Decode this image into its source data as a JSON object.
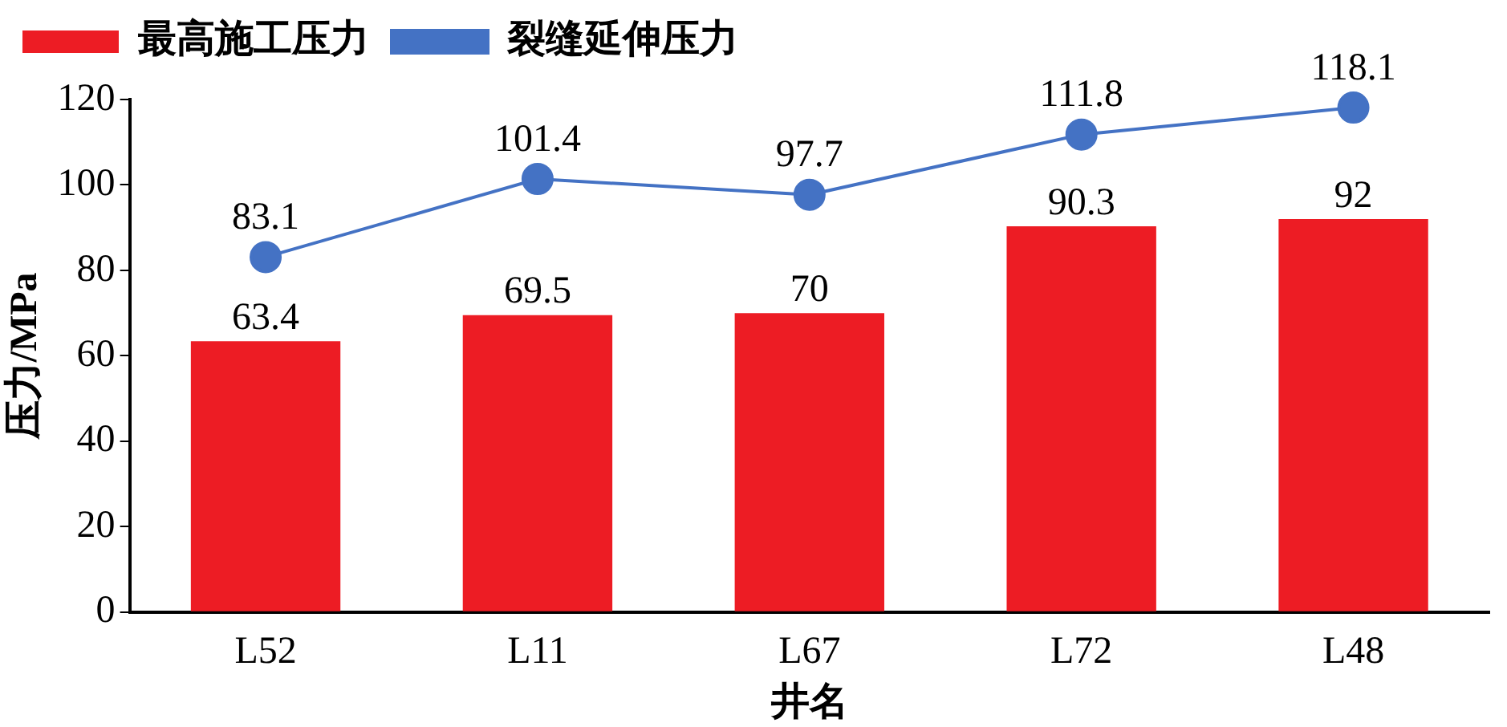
{
  "chart_data": {
    "type": "bar",
    "xlabel": "井名",
    "ylabel": "压力/MPa",
    "categories": [
      "L52",
      "L11",
      "L67",
      "L72",
      "L48"
    ],
    "series": [
      {
        "name": "最高施工压力",
        "color": "#ed1c24",
        "values": [
          63.4,
          69.5,
          70,
          90.3,
          92
        ]
      },
      {
        "name": "裂缝延伸压力",
        "type": "line",
        "color": "#4472c4",
        "values": [
          83.1,
          101.4,
          97.7,
          111.8,
          118.1
        ]
      }
    ],
    "ylim": [
      0,
      120
    ],
    "yticks": [
      0,
      20,
      40,
      60,
      80,
      100,
      120
    ],
    "data_labels": true,
    "legend": "top left",
    "marker": "circle",
    "grid": false
  }
}
